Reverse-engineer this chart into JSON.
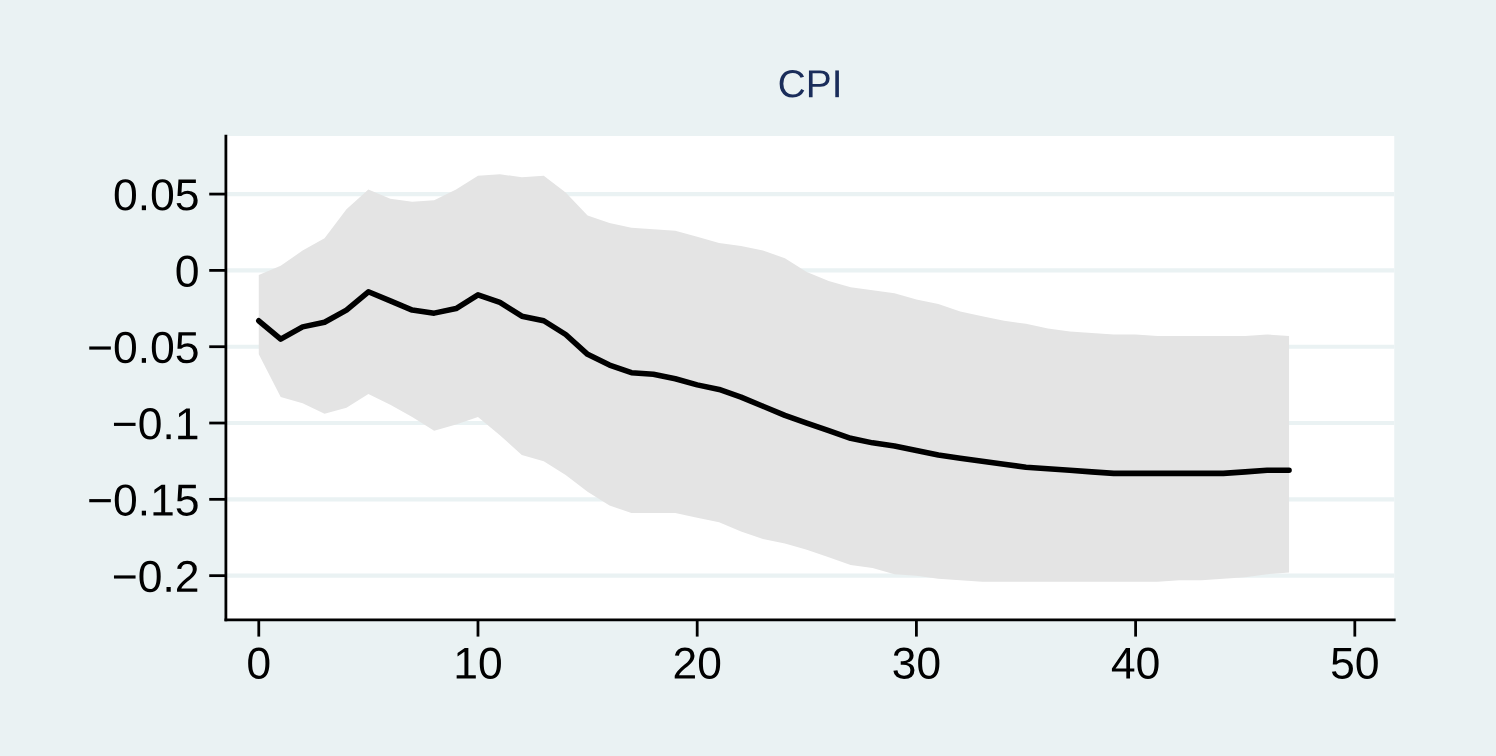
{
  "chart_data": {
    "type": "line",
    "title": "CPI",
    "x": [
      0,
      1,
      2,
      3,
      4,
      5,
      6,
      7,
      8,
      9,
      10,
      11,
      12,
      13,
      14,
      15,
      16,
      17,
      18,
      19,
      20,
      21,
      22,
      23,
      24,
      25,
      26,
      27,
      28,
      29,
      30,
      31,
      32,
      33,
      34,
      35,
      36,
      37,
      38,
      39,
      40,
      41,
      42,
      43,
      44,
      45,
      46,
      47
    ],
    "series": [
      {
        "color": "#000000",
        "values": [
          -0.033,
          -0.045,
          -0.037,
          -0.034,
          -0.026,
          -0.014,
          -0.02,
          -0.026,
          -0.028,
          -0.025,
          -0.016,
          -0.021,
          -0.03,
          -0.033,
          -0.042,
          -0.055,
          -0.062,
          -0.067,
          -0.068,
          -0.071,
          -0.075,
          -0.078,
          -0.083,
          -0.089,
          -0.095,
          -0.1,
          -0.105,
          -0.11,
          -0.113,
          -0.115,
          -0.118,
          -0.121,
          -0.123,
          -0.125,
          -0.127,
          -0.129,
          -0.13,
          -0.131,
          -0.132,
          -0.133,
          -0.133,
          -0.133,
          -0.133,
          -0.133,
          -0.133,
          -0.132,
          -0.131,
          -0.131
        ],
        "upper": [
          -0.003,
          0.003,
          0.013,
          0.021,
          0.04,
          0.053,
          0.047,
          0.045,
          0.046,
          0.053,
          0.062,
          0.063,
          0.061,
          0.062,
          0.051,
          0.036,
          0.031,
          0.028,
          0.027,
          0.026,
          0.022,
          0.018,
          0.016,
          0.013,
          0.008,
          -0.001,
          -0.007,
          -0.011,
          -0.013,
          -0.015,
          -0.019,
          -0.022,
          -0.027,
          -0.03,
          -0.033,
          -0.035,
          -0.038,
          -0.04,
          -0.041,
          -0.042,
          -0.042,
          -0.043,
          -0.043,
          -0.043,
          -0.043,
          -0.043,
          -0.042,
          -0.043
        ],
        "lower": [
          -0.055,
          -0.083,
          -0.087,
          -0.094,
          -0.09,
          -0.081,
          -0.088,
          -0.096,
          -0.105,
          -0.101,
          -0.096,
          -0.108,
          -0.121,
          -0.125,
          -0.134,
          -0.145,
          -0.154,
          -0.159,
          -0.159,
          -0.159,
          -0.162,
          -0.165,
          -0.171,
          -0.176,
          -0.179,
          -0.183,
          -0.188,
          -0.193,
          -0.195,
          -0.199,
          -0.2,
          -0.202,
          -0.203,
          -0.204,
          -0.204,
          -0.204,
          -0.204,
          -0.204,
          -0.204,
          -0.204,
          -0.204,
          -0.204,
          -0.203,
          -0.203,
          -0.202,
          -0.201,
          -0.199,
          -0.198
        ]
      }
    ],
    "xlim": [
      -1.5,
      51.8
    ],
    "xticks": [
      0,
      10,
      20,
      30,
      40,
      50
    ],
    "ylim": [
      -0.229,
      0.088
    ],
    "yticks": [
      {
        "value": 0.05,
        "label": "0.05"
      },
      {
        "value": 0,
        "label": "0"
      },
      {
        "value": -0.05,
        "label": "−0.05"
      },
      {
        "value": -0.1,
        "label": "−0.1"
      },
      {
        "value": -0.15,
        "label": "−0.15"
      },
      {
        "value": -0.2,
        "label": "−0.2"
      }
    ],
    "grid": "y",
    "marker": "none",
    "line_style": "solid"
  }
}
